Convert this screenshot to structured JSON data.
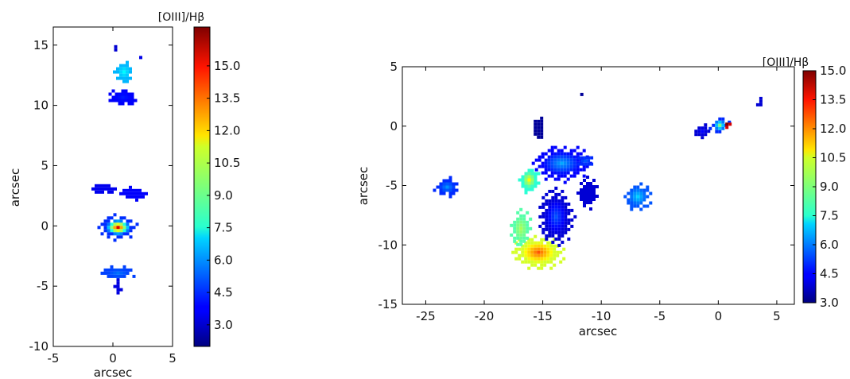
{
  "chart_data": [
    {
      "type": "heatmap",
      "xlabel": "arcsec",
      "ylabel": "arcsec",
      "xlim": [
        -5,
        5
      ],
      "ylim": [
        -10,
        16.5
      ],
      "xticks": [
        "-5",
        "0",
        "5"
      ],
      "yticks": [
        "-10",
        "-5",
        "0",
        "5",
        "10",
        "15"
      ],
      "xtick_values": [
        -5,
        0,
        5
      ],
      "ytick_values": [
        -10,
        -5,
        0,
        5,
        10,
        15
      ],
      "colorbar": {
        "label": "[OIII]/Hβ",
        "range": [
          2.0,
          16.8
        ],
        "ticks": [
          "3.0",
          "4.5",
          "6.0",
          "7.5",
          "9.0",
          "10.5",
          "12.0",
          "13.5",
          "15.0"
        ],
        "tick_values": [
          3.0,
          4.5,
          6.0,
          7.5,
          9.0,
          10.5,
          12.0,
          13.5,
          15.0
        ],
        "colormap": "jet"
      },
      "regions": [
        {
          "x": 0.3,
          "y": 0.0,
          "rx": 1.6,
          "ry": 1.0,
          "value": 4.5,
          "peak": 15.5
        },
        {
          "x": -1.0,
          "y": 3.2,
          "rx": 1.0,
          "ry": 0.45,
          "value": 3.6,
          "peak": 3.6
        },
        {
          "x": 1.6,
          "y": 2.8,
          "rx": 1.2,
          "ry": 0.55,
          "value": 3.8,
          "peak": 3.8
        },
        {
          "x": 0.3,
          "y": -3.8,
          "rx": 1.4,
          "ry": 0.6,
          "value": 4.8,
          "peak": 5.5
        },
        {
          "x": 0.3,
          "y": -4.9,
          "rx": 0.3,
          "ry": 0.8,
          "value": 3.4,
          "peak": 3.4
        },
        {
          "x": 0.7,
          "y": 10.8,
          "rx": 1.2,
          "ry": 0.7,
          "value": 3.8,
          "peak": 4.2
        },
        {
          "x": 0.8,
          "y": 12.9,
          "rx": 0.8,
          "ry": 0.9,
          "value": 6.5,
          "peak": 7.5
        },
        {
          "x": 0.1,
          "y": 15.0,
          "rx": 0.2,
          "ry": 0.3,
          "value": 3.2,
          "peak": 3.2
        },
        {
          "x": 2.2,
          "y": 14.1,
          "rx": 0.15,
          "ry": 0.2,
          "value": 3.5,
          "peak": 3.5
        }
      ]
    },
    {
      "type": "heatmap",
      "xlabel": "arcsec",
      "ylabel": "arcsec",
      "xlim": [
        -27,
        6.5
      ],
      "ylim": [
        -15,
        5
      ],
      "xticks": [
        "-25",
        "-20",
        "-15",
        "-10",
        "-5",
        "0",
        "5"
      ],
      "yticks": [
        "-15",
        "-10",
        "-5",
        "0",
        "5"
      ],
      "xtick_values": [
        -25,
        -20,
        -15,
        -10,
        -5,
        0,
        5
      ],
      "ytick_values": [
        -15,
        -10,
        -5,
        0,
        5
      ],
      "colorbar": {
        "label": "[OIII]/Hβ",
        "range": [
          3.0,
          15.0
        ],
        "ticks": [
          "3.0",
          "4.5",
          "6.0",
          "7.5",
          "9.0",
          "10.5",
          "12.0",
          "13.5",
          "15.0"
        ],
        "tick_values": [
          3.0,
          4.5,
          6.0,
          7.5,
          9.0,
          10.5,
          12.0,
          13.5,
          15.0
        ],
        "colormap": "jet"
      },
      "regions": [
        {
          "x": -23.3,
          "y": -5.0,
          "rx": 1.1,
          "ry": 0.8,
          "value": 5.0,
          "peak": 6.2
        },
        {
          "x": -16.3,
          "y": -4.4,
          "rx": 0.9,
          "ry": 1.1,
          "value": 8.0,
          "peak": 10.5
        },
        {
          "x": -15.5,
          "y": -10.5,
          "rx": 2.2,
          "ry": 1.4,
          "value": 10.0,
          "peak": 12.5
        },
        {
          "x": -17.0,
          "y": -8.5,
          "rx": 0.9,
          "ry": 1.6,
          "value": 8.5,
          "peak": 9.5
        },
        {
          "x": -14.0,
          "y": -7.5,
          "rx": 1.5,
          "ry": 2.4,
          "value": 4.0,
          "peak": 5.5
        },
        {
          "x": -13.5,
          "y": -3.0,
          "rx": 2.5,
          "ry": 1.5,
          "value": 4.5,
          "peak": 6.5
        },
        {
          "x": -15.5,
          "y": 0.0,
          "rx": 0.5,
          "ry": 1.0,
          "value": 3.3,
          "peak": 3.3
        },
        {
          "x": -11.3,
          "y": -5.5,
          "rx": 0.9,
          "ry": 1.3,
          "value": 4.0,
          "peak": 4.0
        },
        {
          "x": -11.5,
          "y": -2.8,
          "rx": 0.8,
          "ry": 0.5,
          "value": 5.0,
          "peak": 5.5
        },
        {
          "x": -7.0,
          "y": -5.8,
          "rx": 1.2,
          "ry": 1.2,
          "value": 5.5,
          "peak": 7.0
        },
        {
          "x": -1.5,
          "y": -0.3,
          "rx": 0.7,
          "ry": 0.6,
          "value": 4.0,
          "peak": 4.5
        },
        {
          "x": 0.0,
          "y": 0.2,
          "rx": 0.8,
          "ry": 0.8,
          "value": 5.0,
          "peak": 9.0
        },
        {
          "x": 0.6,
          "y": 0.3,
          "rx": 0.3,
          "ry": 0.3,
          "value": 14.0,
          "peak": 15.0
        },
        {
          "x": -11.8,
          "y": 2.8,
          "rx": 0.2,
          "ry": 0.25,
          "value": 3.3,
          "peak": 3.3
        },
        {
          "x": 3.5,
          "y": 2.2,
          "rx": 0.3,
          "ry": 0.5,
          "value": 4.0,
          "peak": 4.0
        }
      ]
    }
  ]
}
